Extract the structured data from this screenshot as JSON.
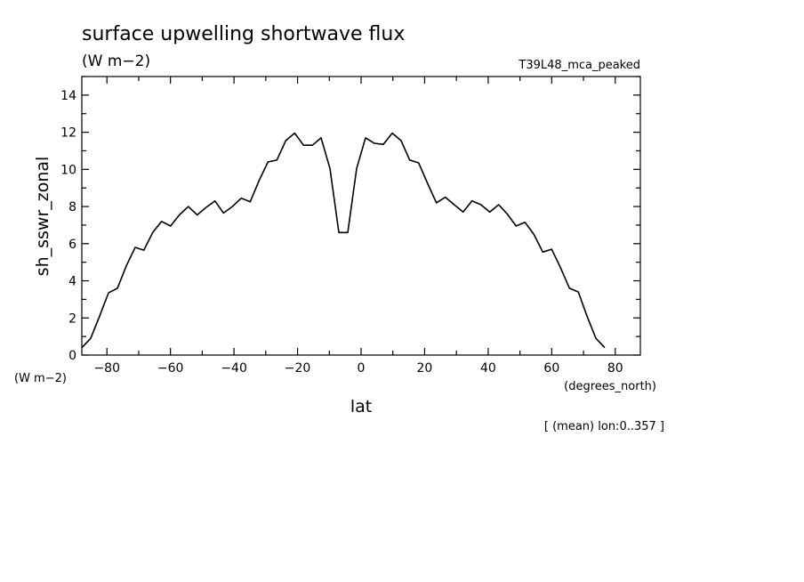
{
  "chart_data": {
    "type": "line",
    "title": "surface upwelling shortwave flux",
    "subtitle": "(W m−2)",
    "run_label": "T39L48_mca_peaked",
    "ylabel": "sh_sswr_zonal",
    "yunit": "(W m−2)",
    "xlabel": "lat",
    "xunit": "(degrees_north)",
    "footnote": "[ (mean) lon:0..357 ]",
    "xlim": [
      -87.9,
      87.9
    ],
    "ylim": [
      0,
      15
    ],
    "xticks": [
      -80,
      -60,
      -40,
      -20,
      0,
      20,
      40,
      60,
      80
    ],
    "xtick_labels": [
      "−80",
      "−60",
      "−40",
      "−20",
      "0",
      "20",
      "40",
      "60",
      "80"
    ],
    "yticks": [
      0,
      2,
      4,
      6,
      8,
      10,
      12,
      14
    ],
    "ytick_labels": [
      "0",
      "2",
      "4",
      "6",
      "8",
      "10",
      "12",
      "14"
    ],
    "grid": false,
    "line_color": "#000000",
    "series": [
      {
        "x": [
          -87.9,
          -85.1,
          -82.3,
          -79.5,
          -76.7,
          -73.9,
          -71.1,
          -68.4,
          -65.6,
          -62.8,
          -60.0,
          -57.2,
          -54.4,
          -51.6,
          -48.8,
          -46.0,
          -43.3,
          -40.5,
          -37.7,
          -34.9,
          -32.1,
          -29.3,
          -26.5,
          -23.7,
          -20.9,
          -18.1,
          -15.3,
          -12.6,
          -9.8,
          -7.0,
          -4.2,
          -1.4,
          1.4,
          4.2,
          7.0,
          9.8,
          12.6,
          15.3,
          18.1,
          20.9,
          23.7,
          26.5,
          29.3,
          32.1,
          34.9,
          37.7,
          40.5,
          43.3,
          46.0,
          48.8,
          51.6,
          54.4,
          57.2,
          60.0,
          62.8,
          65.6,
          68.4,
          71.1,
          73.9,
          76.7,
          79.5,
          82.3,
          85.1,
          87.9
        ],
        "y": [
          0.4,
          0.9,
          2.1,
          3.35,
          3.6,
          4.8,
          5.8,
          5.65,
          6.6,
          7.2,
          6.95,
          7.55,
          8.0,
          7.55,
          7.95,
          8.3,
          7.65,
          8.0,
          8.45,
          8.25,
          9.4,
          10.4,
          10.5,
          11.55,
          11.95,
          11.3,
          11.3,
          11.7,
          10.05,
          6.6,
          6.6,
          10.05,
          11.7,
          11.4,
          11.35,
          11.95,
          11.55,
          10.5,
          10.35,
          9.25,
          8.2,
          8.5,
          8.1,
          7.7,
          8.3,
          8.1,
          7.7,
          8.1,
          7.6,
          6.95,
          7.15,
          6.5,
          5.55,
          5.7,
          4.7,
          3.6,
          3.4,
          2.1,
          0.9,
          0.4,
          null,
          null,
          null,
          null
        ]
      }
    ]
  }
}
